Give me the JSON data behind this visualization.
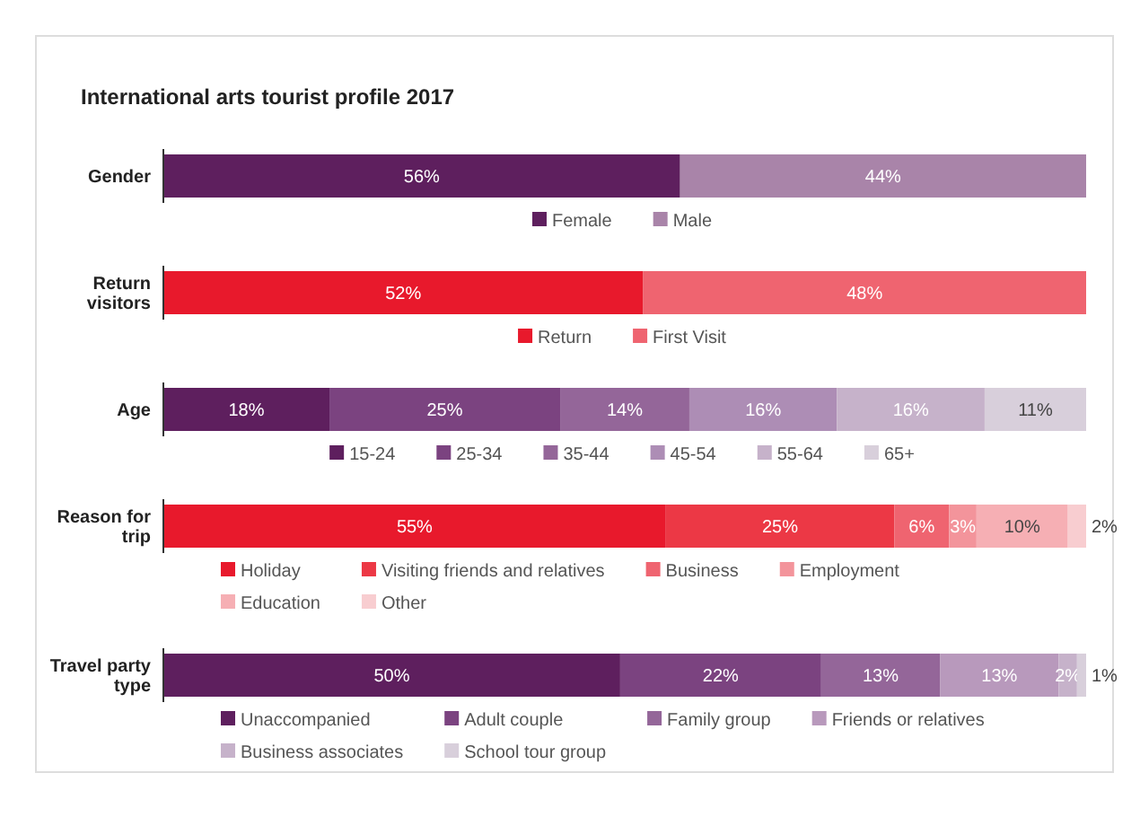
{
  "chart_data": [
    {
      "type": "bar",
      "orientation": "horizontal",
      "stacked": true,
      "title": "International arts tourist profile 2017",
      "categories": [
        "Gender"
      ],
      "legend": "bottom",
      "series": [
        {
          "name": "Female",
          "color": "#5e1f5e",
          "values": [
            56
          ],
          "value_labels": [
            "56%"
          ]
        },
        {
          "name": "Male",
          "color": "#a984a9",
          "values": [
            44
          ],
          "value_labels": [
            "44%"
          ]
        }
      ]
    },
    {
      "type": "bar",
      "orientation": "horizontal",
      "stacked": true,
      "categories": [
        "Return visitors"
      ],
      "legend": "bottom",
      "series": [
        {
          "name": "Return",
          "color": "#e8192c",
          "values": [
            52
          ],
          "value_labels": [
            "52%"
          ]
        },
        {
          "name": "First Visit",
          "color": "#ef6470",
          "values": [
            48
          ],
          "value_labels": [
            "48%"
          ]
        }
      ]
    },
    {
      "type": "bar",
      "orientation": "horizontal",
      "stacked": true,
      "categories": [
        "Age"
      ],
      "legend": "bottom",
      "series": [
        {
          "name": "15-24",
          "color": "#5e1f5e",
          "values": [
            18
          ],
          "value_labels": [
            "18%"
          ]
        },
        {
          "name": "25-34",
          "color": "#7b4380",
          "values": [
            25
          ],
          "value_labels": [
            "25%"
          ]
        },
        {
          "name": "35-44",
          "color": "#946699",
          "values": [
            14
          ],
          "value_labels": [
            "14%"
          ]
        },
        {
          "name": "45-54",
          "color": "#ad8db5",
          "values": [
            16
          ],
          "value_labels": [
            "16%"
          ]
        },
        {
          "name": "55-64",
          "color": "#c6b2ca",
          "values": [
            16
          ],
          "value_labels": [
            "16%"
          ]
        },
        {
          "name": "65+",
          "color": "#d8cfdb",
          "values": [
            11
          ],
          "value_labels": [
            "11%"
          ]
        }
      ]
    },
    {
      "type": "bar",
      "orientation": "horizontal",
      "stacked": true,
      "categories": [
        "Reason for trip"
      ],
      "legend": "bottom",
      "series": [
        {
          "name": "Holiday",
          "color": "#e8192c",
          "values": [
            55
          ],
          "value_labels": [
            "55%"
          ]
        },
        {
          "name": "Visiting friends and relatives",
          "color": "#ec3845",
          "values": [
            25
          ],
          "value_labels": [
            "25%"
          ]
        },
        {
          "name": "Business",
          "color": "#ef6470",
          "values": [
            6
          ],
          "value_labels": [
            "6%"
          ]
        },
        {
          "name": "Employment",
          "color": "#f3949b",
          "values": [
            3
          ],
          "value_labels": [
            "3%"
          ]
        },
        {
          "name": "Education",
          "color": "#f6afb4",
          "values": [
            10
          ],
          "value_labels": [
            "10%"
          ]
        },
        {
          "name": "Other",
          "color": "#f8cdd0",
          "values": [
            2
          ],
          "value_labels": [
            "2%"
          ]
        }
      ]
    },
    {
      "type": "bar",
      "orientation": "horizontal",
      "stacked": true,
      "categories": [
        "Travel party type"
      ],
      "legend": "bottom",
      "series": [
        {
          "name": "Unaccompanied",
          "color": "#5e1f5e",
          "values": [
            50
          ],
          "value_labels": [
            "50%"
          ]
        },
        {
          "name": "Adult couple",
          "color": "#7b4380",
          "values": [
            22
          ],
          "value_labels": [
            "22%"
          ]
        },
        {
          "name": "Family group",
          "color": "#946699",
          "values": [
            13
          ],
          "value_labels": [
            "13%"
          ]
        },
        {
          "name": "Friends or relatives",
          "color": "#b899bc",
          "values": [
            13
          ],
          "value_labels": [
            "13%"
          ]
        },
        {
          "name": "Business associates",
          "color": "#c6b2ca",
          "values": [
            2
          ],
          "value_labels": [
            "2%"
          ]
        },
        {
          "name": "School tour group",
          "color": "#d8cfdb",
          "values": [
            1
          ],
          "value_labels": [
            "1%"
          ]
        }
      ]
    }
  ]
}
